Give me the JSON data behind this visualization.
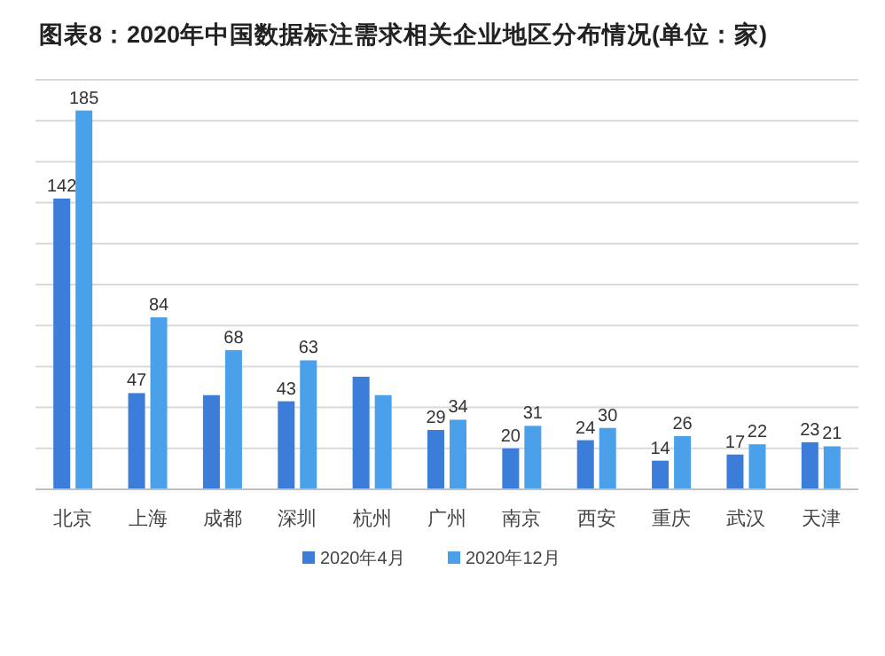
{
  "chart_data": {
    "type": "bar",
    "title": "图表8：2020年中国数据标注需求相关企业地区分布情况(单位：家)",
    "categories": [
      "北京",
      "上海",
      "成都",
      "深圳",
      "杭州",
      "广州",
      "南京",
      "西安",
      "重庆",
      "武汉",
      "天津"
    ],
    "series": [
      {
        "name": "2020年4月",
        "color": "#3b7dd8",
        "values": [
          142,
          47,
          46,
          43,
          55,
          29,
          20,
          24,
          14,
          17,
          23
        ],
        "value_labels": [
          "142",
          "47",
          null,
          "43",
          null,
          "29",
          "20",
          "24",
          "14",
          "17",
          "23"
        ]
      },
      {
        "name": "2020年12月",
        "color": "#4ba0ea",
        "values": [
          185,
          84,
          68,
          63,
          46,
          34,
          31,
          30,
          26,
          22,
          21
        ],
        "value_labels": [
          "185",
          "84",
          "68",
          "63",
          null,
          "34",
          "31",
          "30",
          "26",
          "22",
          "21"
        ]
      }
    ],
    "ylim": [
      0,
      200
    ],
    "yticks": [
      {
        "value": 0,
        "label": null
      },
      {
        "value": 20,
        "label": null
      },
      {
        "value": 40,
        "label": null
      },
      {
        "value": 60,
        "label": null
      },
      {
        "value": 80,
        "label": null
      },
      {
        "value": 100,
        "label": null
      },
      {
        "value": 120,
        "label": null
      },
      {
        "value": 140,
        "label": null
      },
      {
        "value": 160,
        "label": null
      },
      {
        "value": 180,
        "label": null
      },
      {
        "value": 200,
        "label": null
      }
    ],
    "tick_labels": "x",
    "grid": "y",
    "legend": "bottom"
  }
}
